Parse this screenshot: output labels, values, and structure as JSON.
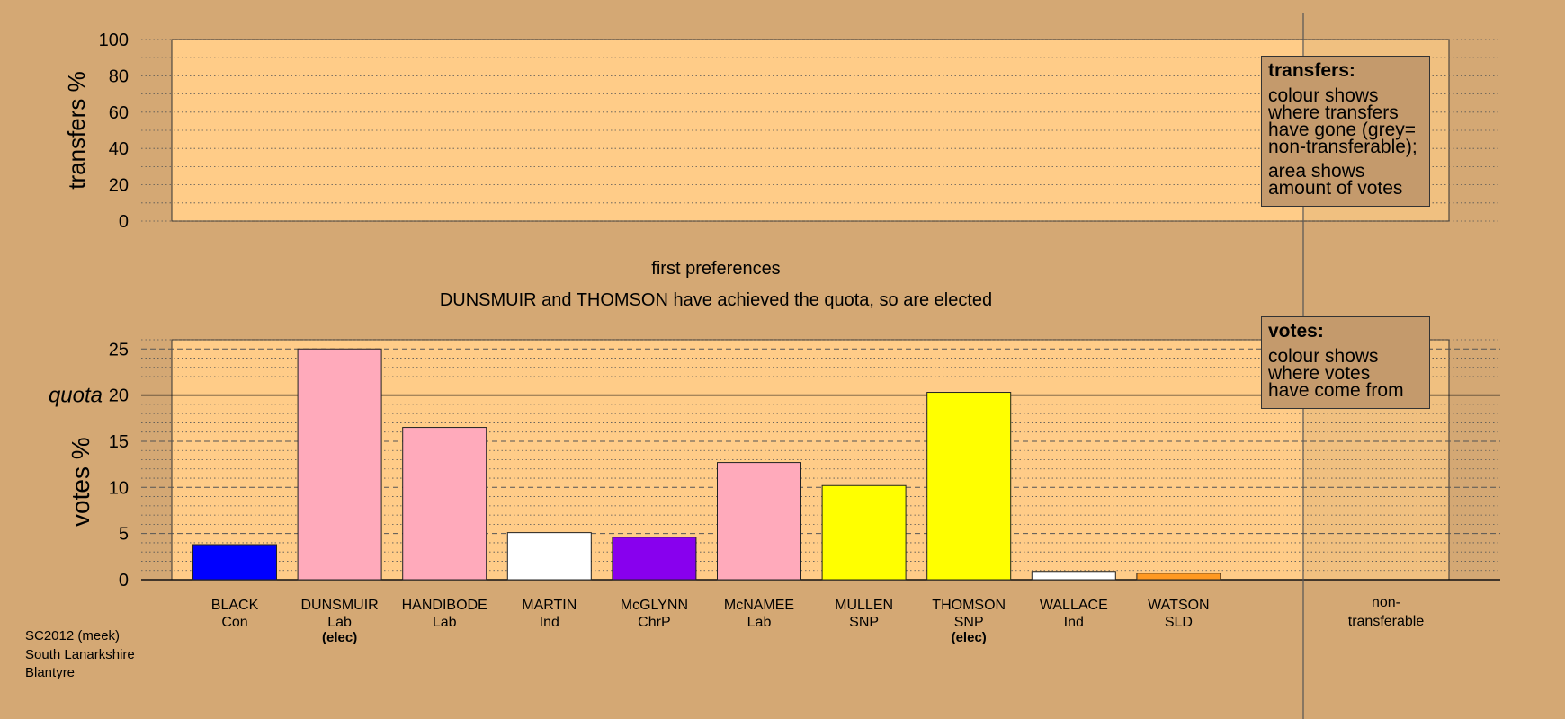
{
  "top_panel": {
    "ylabel": "transfers %",
    "yticks": [
      "0",
      "20",
      "40",
      "60",
      "80",
      "100"
    ]
  },
  "stage": {
    "title": "first preferences",
    "message": "DUNSMUIR and THOMSON have achieved the quota, so are elected"
  },
  "bottom_panel": {
    "ylabel": "votes %",
    "quota_label": "quota",
    "yticks": [
      "0",
      "5",
      "10",
      "15",
      "20",
      "25"
    ]
  },
  "transfers_box": {
    "title": "transfers:",
    "lines1": [
      "colour shows",
      "where transfers",
      "have gone (grey=",
      "non-transferable);"
    ],
    "lines2": [
      "area shows",
      "amount of votes"
    ]
  },
  "votes_box": {
    "title": "votes:",
    "lines": [
      "colour shows",
      "where votes",
      "have come from"
    ]
  },
  "non_transferable_label": [
    "non-",
    "transferable"
  ],
  "footer": [
    "SC2012 (meek)",
    "South Lanarkshire",
    "Blantyre"
  ],
  "colors": {
    "background": "#d4a874",
    "plot_area": "#ffcc88",
    "con": "#0000ff",
    "lab": "#ffaabb",
    "ind": "#ffffff",
    "chrp": "#8800ee",
    "snp": "#ffff00",
    "sld": "#ff9922"
  },
  "chart_data": [
    {
      "type": "bar",
      "ylabel": "transfers %",
      "ylim": [
        0,
        100
      ],
      "yticks": [
        0,
        20,
        40,
        60,
        80,
        100
      ],
      "values": []
    },
    {
      "type": "bar",
      "title": "first preferences",
      "subtitle": "DUNSMUIR and THOMSON have achieved the quota, so are elected",
      "ylabel": "votes %",
      "ylim": [
        0,
        26
      ],
      "yticks": [
        0,
        5,
        10,
        15,
        20,
        25
      ],
      "quota": 20,
      "categories": [
        {
          "name": "BLACK",
          "party": "Con",
          "elected": ""
        },
        {
          "name": "DUNSMUIR",
          "party": "Lab",
          "elected": "(elec)"
        },
        {
          "name": "HANDIBODE",
          "party": "Lab",
          "elected": ""
        },
        {
          "name": "MARTIN",
          "party": "Ind",
          "elected": ""
        },
        {
          "name": "McGLYNN",
          "party": "ChrP",
          "elected": ""
        },
        {
          "name": "McNAMEE",
          "party": "Lab",
          "elected": ""
        },
        {
          "name": "MULLEN",
          "party": "SNP",
          "elected": ""
        },
        {
          "name": "THOMSON",
          "party": "SNP",
          "elected": "(elec)"
        },
        {
          "name": "WALLACE",
          "party": "Ind",
          "elected": ""
        },
        {
          "name": "WATSON",
          "party": "SLD",
          "elected": ""
        }
      ],
      "values": [
        3.8,
        25.0,
        16.5,
        5.1,
        4.6,
        12.7,
        10.2,
        20.3,
        0.9,
        0.7
      ],
      "bar_colors": [
        "#0000ff",
        "#ffaabb",
        "#ffaabb",
        "#ffffff",
        "#8800ee",
        "#ffaabb",
        "#ffff00",
        "#ffff00",
        "#ffffff",
        "#ff9922"
      ],
      "grid": true
    }
  ]
}
